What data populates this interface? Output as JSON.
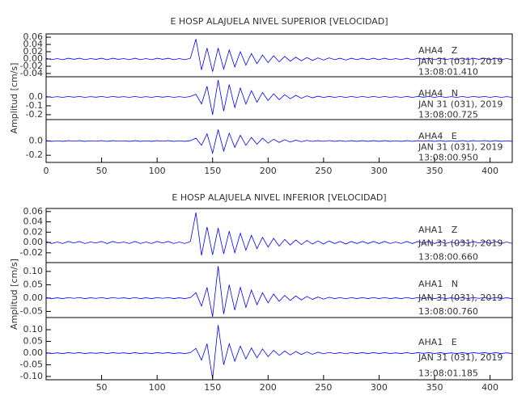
{
  "chart_data": [
    {
      "type": "line",
      "title": "E HOSP ALAJUELA NIVEL SUPERIOR [VELOCIDAD]",
      "ylabel": "Amplitud [cm/s]",
      "xlim": [
        0,
        420
      ],
      "xticks": [
        0,
        50,
        100,
        150,
        200,
        250,
        300,
        350,
        400
      ],
      "x": [
        0,
        5,
        10,
        15,
        20,
        25,
        30,
        35,
        40,
        45,
        50,
        55,
        60,
        65,
        70,
        75,
        80,
        85,
        90,
        95,
        100,
        105,
        110,
        115,
        120,
        125,
        130,
        135,
        140,
        145,
        150,
        155,
        160,
        165,
        170,
        175,
        180,
        185,
        190,
        195,
        200,
        205,
        210,
        215,
        220,
        225,
        230,
        235,
        240,
        245,
        250,
        255,
        260,
        265,
        270,
        275,
        280,
        285,
        290,
        295,
        300,
        305,
        310,
        315,
        320,
        325,
        330,
        335,
        340,
        345,
        350,
        355,
        360,
        365,
        370,
        375,
        380,
        385,
        390,
        395,
        400,
        405,
        410,
        415,
        420
      ],
      "series": [
        {
          "name": "AHA4   Z",
          "date": "JAN 31 (031), 2019",
          "time": "13:08:01.410",
          "color": "#0000ff",
          "ylim": [
            -0.049,
            0.069
          ],
          "yticks": [
            {
              "value": 0.06,
              "label": "0.06"
            },
            {
              "value": 0.04,
              "label": "0.04"
            },
            {
              "value": 0.02,
              "label": "0.02"
            },
            {
              "value": 0,
              "label": "0.00"
            },
            {
              "value": -0.02,
              "label": "-0.02"
            },
            {
              "value": -0.04,
              "label": "-0.04"
            }
          ],
          "values": [
            0.002,
            -0.002,
            0.001,
            -0.002,
            0.002,
            -0.001,
            0.002,
            -0.002,
            0.001,
            -0.001,
            0.002,
            -0.002,
            0.002,
            -0.001,
            0.001,
            -0.002,
            0.002,
            -0.002,
            0.001,
            -0.002,
            0.002,
            -0.001,
            0.002,
            -0.002,
            0.001,
            -0.002,
            0.002,
            0.055,
            -0.03,
            0.03,
            -0.035,
            0.03,
            -0.028,
            0.025,
            -0.022,
            0.02,
            -0.017,
            0.015,
            -0.013,
            0.011,
            -0.01,
            0.009,
            -0.008,
            0.007,
            -0.006,
            0.005,
            -0.005,
            0.004,
            -0.004,
            0.003,
            -0.003,
            0.003,
            -0.002,
            0.002,
            -0.003,
            0.002,
            -0.002,
            0.002,
            -0.002,
            0.002,
            -0.002,
            0.002,
            -0.002,
            0.001,
            -0.002,
            0.002,
            -0.002,
            0.002,
            -0.001,
            0.002,
            -0.002,
            0.002,
            -0.002,
            0.001,
            -0.002,
            0.002,
            -0.002,
            0.002,
            -0.001,
            0.002,
            -0.002,
            0.002,
            -0.002,
            0.001,
            -0.002
          ]
        },
        {
          "name": "AHA4   N",
          "date": "JAN 31 (031), 2019",
          "time": "13:08:00.725",
          "color": "#0000ff",
          "ylim": [
            -0.255,
            0.227
          ],
          "yticks": [
            {
              "value": 0,
              "label": "0.0"
            },
            -0.1,
            -0.2
          ],
          "values": [
            0.005,
            -0.005,
            0.003,
            -0.005,
            0.005,
            -0.003,
            0.005,
            -0.005,
            0.003,
            -0.003,
            0.005,
            -0.005,
            0.005,
            -0.003,
            0.003,
            -0.005,
            0.005,
            -0.005,
            0.003,
            -0.005,
            0.005,
            -0.003,
            0.005,
            -0.005,
            0.003,
            -0.005,
            0.005,
            0.03,
            -0.08,
            0.12,
            -0.2,
            0.19,
            -0.16,
            0.14,
            -0.12,
            0.1,
            -0.08,
            0.07,
            -0.06,
            0.05,
            -0.04,
            0.035,
            -0.03,
            0.025,
            -0.02,
            0.018,
            -0.015,
            0.012,
            -0.01,
            0.008,
            -0.006,
            0.006,
            -0.005,
            0.005,
            -0.006,
            0.005,
            -0.005,
            0.005,
            -0.005,
            0.005,
            -0.005,
            0.005,
            -0.005,
            0.003,
            -0.005,
            0.005,
            -0.005,
            0.005,
            -0.003,
            0.005,
            -0.005,
            0.005,
            -0.005,
            0.003,
            -0.005,
            0.005,
            -0.005,
            0.005,
            -0.003,
            0.005,
            -0.005,
            0.005,
            -0.005,
            0.003,
            -0.005
          ]
        },
        {
          "name": "AHA4   E",
          "date": "JAN 31 (031), 2019",
          "time": "13:08:00.950",
          "color": "#0000ff",
          "ylim": [
            -0.3,
            0.3
          ],
          "yticks": [
            {
              "value": 0,
              "label": "0.0"
            },
            -0.2
          ],
          "values": [
            0.005,
            -0.005,
            0.003,
            -0.005,
            0.005,
            -0.003,
            0.005,
            -0.005,
            0.003,
            -0.003,
            0.005,
            -0.005,
            0.005,
            -0.003,
            0.003,
            -0.005,
            0.005,
            -0.005,
            0.003,
            -0.005,
            0.005,
            -0.003,
            0.005,
            -0.005,
            0.003,
            -0.005,
            0.005,
            0.04,
            -0.06,
            0.1,
            -0.17,
            0.16,
            -0.14,
            0.11,
            -0.09,
            0.08,
            -0.06,
            0.05,
            -0.045,
            0.04,
            -0.03,
            0.025,
            -0.02,
            0.018,
            -0.015,
            0.012,
            -0.01,
            0.008,
            -0.006,
            0.005,
            -0.004,
            0.006,
            -0.005,
            0.005,
            -0.006,
            0.005,
            -0.005,
            0.005,
            -0.005,
            0.005,
            -0.005,
            0.005,
            -0.005,
            0.003,
            -0.005,
            0.005,
            -0.005,
            0.005,
            -0.003,
            0.005,
            -0.005,
            0.005,
            -0.005,
            0.003,
            -0.005,
            0.005,
            -0.005,
            0.005,
            -0.003,
            0.005,
            -0.005,
            0.005,
            -0.005,
            0.003,
            -0.005
          ]
        }
      ]
    },
    {
      "type": "line",
      "title": "E HOSP ALAJUELA NIVEL INFERIOR [VELOCIDAD]",
      "ylabel": "Amplitud [cm/s]",
      "xlim": [
        0,
        420
      ],
      "xticks": [
        50,
        100,
        150,
        200,
        250,
        300,
        350,
        400
      ],
      "x": [
        0,
        5,
        10,
        15,
        20,
        25,
        30,
        35,
        40,
        45,
        50,
        55,
        60,
        65,
        70,
        75,
        80,
        85,
        90,
        95,
        100,
        105,
        110,
        115,
        120,
        125,
        130,
        135,
        140,
        145,
        150,
        155,
        160,
        165,
        170,
        175,
        180,
        185,
        190,
        195,
        200,
        205,
        210,
        215,
        220,
        225,
        230,
        235,
        240,
        245,
        250,
        255,
        260,
        265,
        270,
        275,
        280,
        285,
        290,
        295,
        300,
        305,
        310,
        315,
        320,
        325,
        330,
        335,
        340,
        345,
        350,
        355,
        360,
        365,
        370,
        375,
        380,
        385,
        390,
        395,
        400,
        405,
        410,
        415,
        420
      ],
      "series": [
        {
          "name": "AHA1   Z",
          "date": "JAN 31 (031), 2019",
          "time": "13:08:00.660",
          "color": "#0000ff",
          "ylim": [
            -0.039,
            0.066
          ],
          "yticks": [
            {
              "value": 0.06,
              "label": "0.06"
            },
            {
              "value": 0.04,
              "label": "0.04"
            },
            {
              "value": 0.02,
              "label": "0.02"
            },
            {
              "value": 0,
              "label": "0.00"
            },
            {
              "value": -0.02,
              "label": "-0.02"
            }
          ],
          "values": [
            0.002,
            -0.002,
            0.001,
            -0.002,
            0.002,
            -0.001,
            0.002,
            -0.002,
            0.001,
            -0.001,
            0.002,
            -0.002,
            0.002,
            -0.001,
            0.001,
            -0.002,
            0.002,
            -0.002,
            0.001,
            -0.002,
            0.002,
            -0.001,
            0.002,
            -0.002,
            0.001,
            -0.002,
            0.002,
            0.058,
            -0.025,
            0.03,
            -0.024,
            0.028,
            -0.022,
            0.022,
            -0.02,
            0.018,
            -0.015,
            0.014,
            -0.012,
            0.01,
            -0.009,
            0.008,
            -0.007,
            0.006,
            -0.005,
            0.005,
            -0.004,
            0.004,
            -0.003,
            0.003,
            -0.003,
            0.003,
            -0.002,
            0.002,
            -0.003,
            0.002,
            -0.002,
            0.002,
            -0.002,
            0.002,
            -0.002,
            0.002,
            -0.002,
            0.001,
            -0.002,
            0.002,
            -0.002,
            0.002,
            -0.001,
            0.002,
            -0.002,
            0.002,
            -0.002,
            0.001,
            -0.002,
            0.002,
            -0.002,
            0.002,
            -0.001,
            0.002,
            -0.002,
            0.002,
            -0.002,
            0.001,
            -0.002
          ]
        },
        {
          "name": "AHA1   N",
          "date": "JAN 31 (031), 2019",
          "time": "13:08:00.760",
          "color": "#0000ff",
          "ylim": [
            -0.073,
            0.133
          ],
          "yticks": [
            {
              "value": 0.1,
              "label": "0.10"
            },
            {
              "value": 0.05,
              "label": "0.05"
            },
            {
              "value": 0,
              "label": "0.00"
            },
            {
              "value": -0.05,
              "label": "-0.05"
            }
          ],
          "values": [
            0.002,
            -0.002,
            0.001,
            -0.002,
            0.002,
            -0.001,
            0.002,
            -0.002,
            0.001,
            -0.001,
            0.002,
            -0.002,
            0.002,
            -0.001,
            0.001,
            -0.002,
            0.002,
            -0.002,
            0.001,
            -0.002,
            0.002,
            -0.001,
            0.002,
            -0.002,
            0.001,
            -0.002,
            0.002,
            0.02,
            -0.03,
            0.04,
            -0.07,
            0.12,
            -0.06,
            0.05,
            -0.045,
            0.04,
            -0.035,
            0.03,
            -0.025,
            0.02,
            -0.018,
            0.015,
            -0.012,
            0.01,
            -0.009,
            0.008,
            -0.007,
            0.006,
            -0.005,
            0.004,
            -0.004,
            0.003,
            -0.002,
            0.002,
            -0.003,
            0.002,
            -0.002,
            0.002,
            -0.002,
            0.002,
            -0.002,
            0.002,
            -0.002,
            0.001,
            -0.002,
            0.002,
            -0.002,
            0.002,
            -0.001,
            0.002,
            -0.002,
            0.002,
            -0.002,
            0.001,
            -0.002,
            0.002,
            -0.002,
            0.002,
            -0.001,
            0.002,
            -0.002,
            0.002,
            -0.002,
            0.001,
            -0.002
          ]
        },
        {
          "name": "AHA1   E",
          "date": "JAN 31 (031), 2019",
          "time": "13:08:01.185",
          "color": "#0000ff",
          "ylim": [
            -0.114,
            0.152
          ],
          "yticks": [
            {
              "value": 0.1,
              "label": "0.10"
            },
            {
              "value": 0.05,
              "label": "0.05"
            },
            {
              "value": 0,
              "label": "0.00"
            },
            {
              "value": -0.05,
              "label": "-0.05"
            },
            {
              "value": -0.1,
              "label": "-0.10"
            }
          ],
          "values": [
            0.002,
            -0.002,
            0.001,
            -0.002,
            0.002,
            -0.001,
            0.002,
            -0.002,
            0.001,
            -0.001,
            0.002,
            -0.002,
            0.002,
            -0.001,
            0.001,
            -0.002,
            0.002,
            -0.002,
            0.001,
            -0.002,
            0.002,
            -0.001,
            0.002,
            -0.002,
            0.001,
            -0.002,
            0.002,
            0.02,
            -0.03,
            0.04,
            -0.11,
            0.12,
            -0.05,
            0.04,
            -0.035,
            0.03,
            -0.025,
            0.022,
            -0.02,
            0.018,
            -0.015,
            0.012,
            -0.01,
            0.009,
            -0.008,
            0.007,
            -0.006,
            0.005,
            -0.005,
            0.004,
            -0.003,
            0.003,
            -0.002,
            0.002,
            -0.003,
            0.002,
            -0.002,
            0.002,
            -0.002,
            0.002,
            -0.002,
            0.002,
            -0.002,
            0.001,
            -0.002,
            0.002,
            -0.002,
            0.002,
            -0.001,
            0.002,
            -0.002,
            0.002,
            -0.002,
            0.001,
            -0.002,
            0.002,
            -0.002,
            0.002,
            -0.001,
            0.002,
            -0.002,
            0.002,
            -0.002,
            0.001,
            -0.002
          ]
        }
      ]
    }
  ]
}
